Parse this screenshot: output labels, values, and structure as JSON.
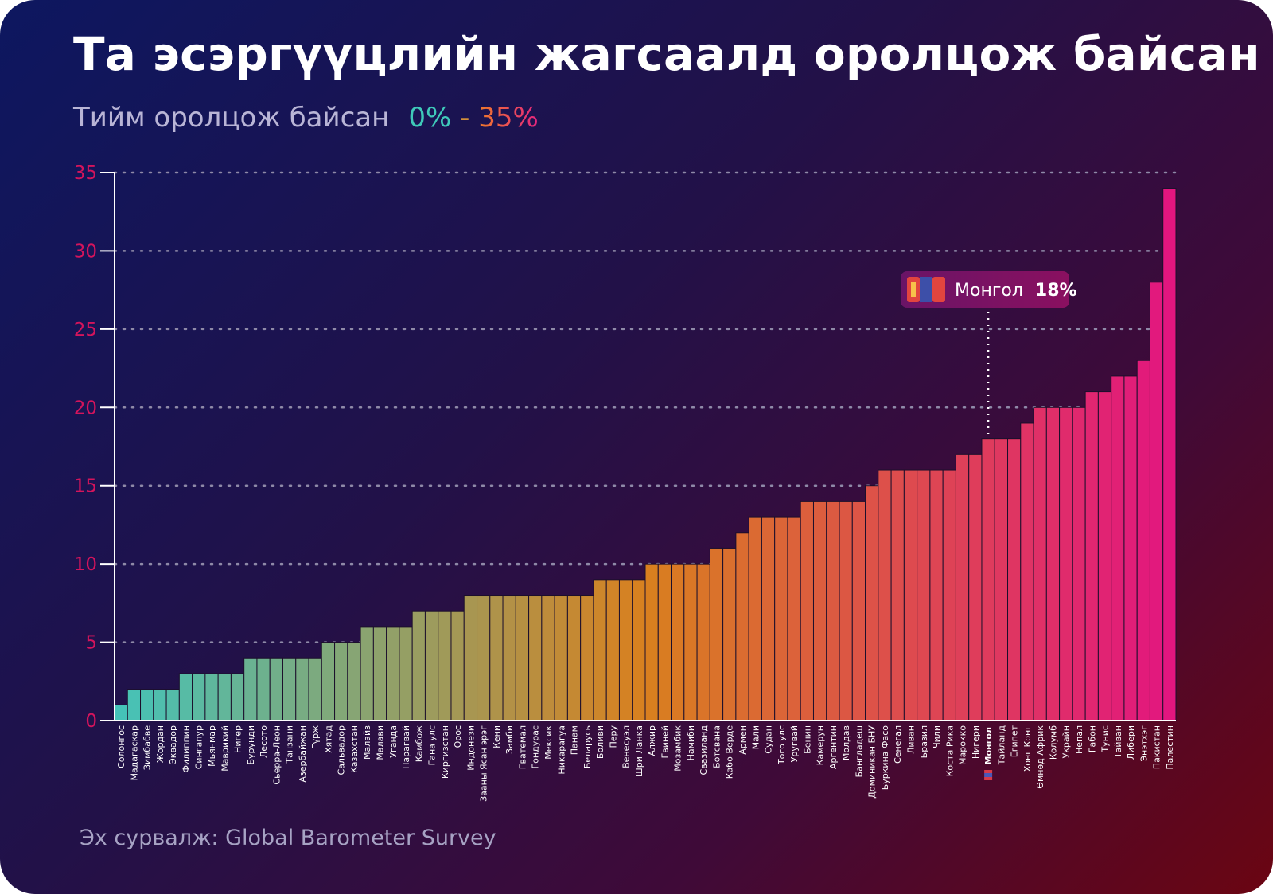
{
  "title": "Та эсэргүүцлийн жагсаалд оролцож байсан уу?",
  "subtitle": {
    "label": "Тийм оролцож байсан",
    "range_low": "0%",
    "range_sep": " - ",
    "range_high": "35%"
  },
  "source": "Эх сурвалж: Global Barometer Survey",
  "callout": {
    "name": "Монгол",
    "value_label": "18%",
    "flag_icon": "mongolia-flag-icon"
  },
  "colors": {
    "low": "#45c3b8",
    "mid": "#d9801e",
    "high": "#e2167f",
    "axis_tick": "#d4145c",
    "callout_bg": "#7a1261"
  },
  "chart_data": {
    "type": "bar",
    "ylim": [
      0,
      35
    ],
    "yticks": [
      0,
      5,
      10,
      15,
      20,
      25,
      30,
      35
    ],
    "grid": true,
    "highlight": "Монгол",
    "categories": [
      "Солонгос",
      "Мадагаскар",
      "Зимбабве",
      "Жордан",
      "Эквадор",
      "Филиппин",
      "Сингапур",
      "Мьянмар",
      "Маврикий",
      "Нигер",
      "Бурунди",
      "Лесото",
      "Сьерра-Леон",
      "Танзани",
      "Азербайжан",
      "Гүрж",
      "Хятад",
      "Сальвадор",
      "Казахстан",
      "Малайз",
      "Малави",
      "Уганда",
      "Парагвай",
      "Камбож",
      "Гана улс",
      "Киргизстан",
      "Орос",
      "Индонези",
      "Зааны Ясан эрэг",
      "Кени",
      "Замби",
      "Гватемал",
      "Гондурас",
      "Мексик",
      "Никарагуа",
      "Панам",
      "Беларусь",
      "Боливи",
      "Перу",
      "Венесуэл",
      "Шри Ланка",
      "Алжир",
      "Гвиней",
      "Мозамбик",
      "Намиби",
      "Свазиланд",
      "Ботсвана",
      "Кабо Верде",
      "Армен",
      "Мали",
      "Судан",
      "Того улс",
      "Уругвай",
      "Бенин",
      "Камерун",
      "Аргентин",
      "Молдав",
      "Бангладеш",
      "Доминикан БНУ",
      "Буркина Фасо",
      "Сенегал",
      "Ливан",
      "Бразил",
      "Чили",
      "Коста Рика",
      "Марокко",
      "Нигери",
      "Монгол",
      "Тайланд",
      "Египет",
      "Хонг Конг",
      "Өмнөд Африк",
      "Колумб",
      "Украйн",
      "Непал",
      "Габон",
      "Тунис",
      "Тайван",
      "Либери",
      "Энэтхэг",
      "Пакистан",
      "Палестин"
    ],
    "values": [
      1,
      2,
      2,
      2,
      2,
      3,
      3,
      3,
      3,
      3,
      4,
      4,
      4,
      4,
      4,
      4,
      5,
      5,
      5,
      6,
      6,
      6,
      6,
      7,
      7,
      7,
      7,
      8,
      8,
      8,
      8,
      8,
      8,
      8,
      8,
      8,
      8,
      9,
      9,
      9,
      9,
      10,
      10,
      10,
      10,
      10,
      11,
      11,
      12,
      13,
      13,
      13,
      13,
      14,
      14,
      14,
      14,
      14,
      15,
      16,
      16,
      16,
      16,
      16,
      16,
      17,
      17,
      18,
      18,
      18,
      19,
      20,
      20,
      20,
      20,
      21,
      21,
      22,
      22,
      23,
      28,
      34
    ]
  }
}
